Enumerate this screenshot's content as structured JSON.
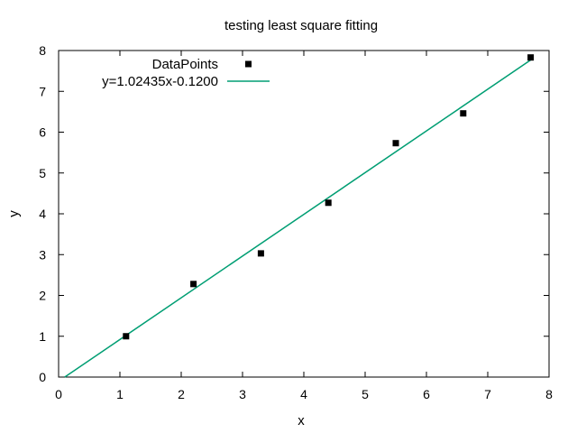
{
  "chart_data": {
    "type": "scatter",
    "title": "testing least square fitting",
    "xlabel": "x",
    "ylabel": "y",
    "xlim": [
      0,
      8
    ],
    "ylim": [
      0,
      8
    ],
    "xticks": [
      0,
      1,
      2,
      3,
      4,
      5,
      6,
      7,
      8
    ],
    "yticks": [
      0,
      1,
      2,
      3,
      4,
      5,
      6,
      7,
      8
    ],
    "grid": false,
    "legend_position": "top-left",
    "series": [
      {
        "name": "DataPoints",
        "kind": "points",
        "color": "#000000",
        "x": [
          1.1,
          2.2,
          3.3,
          4.4,
          5.5,
          6.6,
          7.7
        ],
        "y": [
          1.0,
          2.28,
          3.03,
          4.27,
          5.73,
          6.46,
          7.83
        ]
      },
      {
        "name": "y=1.02435x-0.1200",
        "kind": "line",
        "color": "#009e73",
        "x": [
          0.1,
          7.7
        ],
        "y": [
          -0.0176,
          7.7675
        ]
      }
    ]
  }
}
